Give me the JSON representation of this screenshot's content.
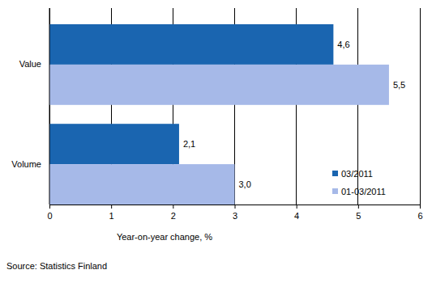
{
  "chart_data": {
    "type": "bar",
    "orientation": "horizontal",
    "categories": [
      "Value",
      "Volume"
    ],
    "series": [
      {
        "name": "03/2011",
        "color": "#1a65b0",
        "values": [
          4.6,
          2.1
        ],
        "value_labels": [
          "4,6",
          "2,1"
        ]
      },
      {
        "name": "01-03/2011",
        "color": "#a6b9e8",
        "values": [
          5.5,
          3.0
        ],
        "value_labels": [
          "5,5",
          "3,0"
        ]
      }
    ],
    "xlim": [
      0,
      6
    ],
    "xticks": [
      0,
      1,
      2,
      3,
      4,
      5,
      6
    ],
    "x_label": "Year-on-year change, %",
    "source": "Source: Statistics Finland",
    "grid": true,
    "legend": "lower right",
    "data_labels": true
  }
}
